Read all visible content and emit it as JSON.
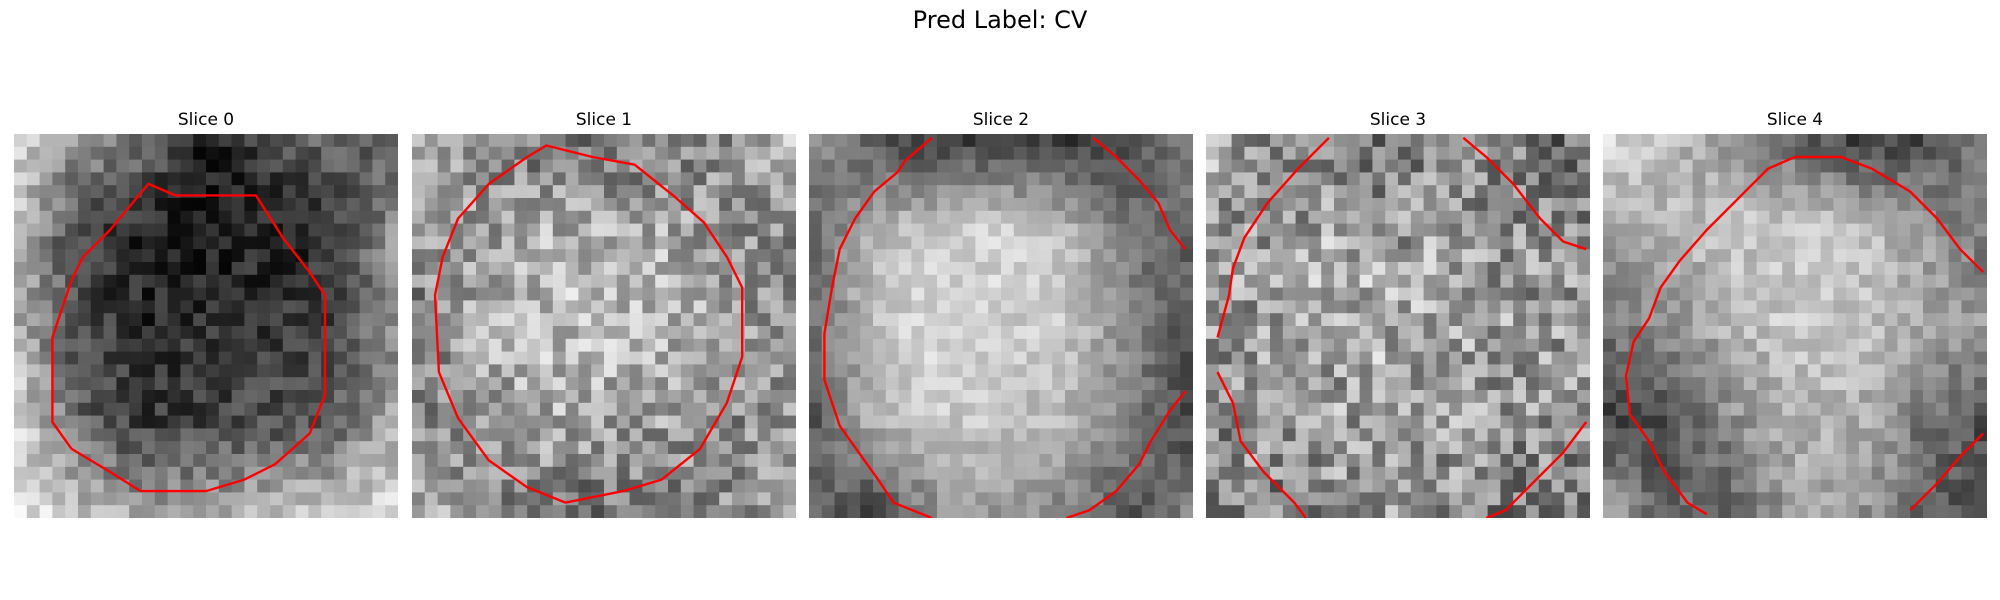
{
  "figure": {
    "title": "Pred Label: CV",
    "contour_color": "#ff0000",
    "colormap": "grayscale",
    "grid_size": 30,
    "slices": [
      {
        "title": "Slice 0",
        "noise": 0.14,
        "field": [
          [
            0.82,
            0.62,
            0.48,
            0.1,
            0.25,
            0.45,
            0.33
          ],
          [
            0.8,
            0.25,
            0.12,
            0.08,
            0.12,
            0.18,
            0.6
          ],
          [
            0.72,
            0.28,
            0.15,
            0.16,
            0.2,
            0.24,
            0.55
          ],
          [
            0.88,
            0.4,
            0.22,
            0.25,
            0.3,
            0.35,
            0.7
          ],
          [
            0.96,
            0.8,
            0.65,
            0.7,
            0.78,
            0.85,
            0.9
          ]
        ],
        "contour": [
          [
            0.35,
            0.13
          ],
          [
            0.42,
            0.16
          ],
          [
            0.63,
            0.16
          ],
          [
            0.7,
            0.27
          ],
          [
            0.77,
            0.36
          ],
          [
            0.81,
            0.42
          ],
          [
            0.81,
            0.68
          ],
          [
            0.77,
            0.78
          ],
          [
            0.68,
            0.86
          ],
          [
            0.6,
            0.9
          ],
          [
            0.5,
            0.93
          ],
          [
            0.33,
            0.93
          ],
          [
            0.25,
            0.88
          ],
          [
            0.15,
            0.82
          ],
          [
            0.1,
            0.75
          ],
          [
            0.1,
            0.53
          ],
          [
            0.15,
            0.38
          ],
          [
            0.18,
            0.32
          ],
          [
            0.25,
            0.25
          ]
        ],
        "closed": true
      },
      {
        "title": "Slice 1",
        "noise": 0.22,
        "field": [
          [
            0.75,
            0.55,
            0.45,
            0.42,
            0.45,
            0.55,
            0.75
          ],
          [
            0.55,
            0.62,
            0.7,
            0.72,
            0.68,
            0.6,
            0.55
          ],
          [
            0.5,
            0.66,
            0.75,
            0.78,
            0.72,
            0.62,
            0.5
          ],
          [
            0.55,
            0.6,
            0.68,
            0.65,
            0.62,
            0.55,
            0.58
          ],
          [
            0.75,
            0.52,
            0.45,
            0.42,
            0.48,
            0.55,
            0.75
          ]
        ],
        "contour": [
          [
            0.3,
            0.06
          ],
          [
            0.35,
            0.03
          ],
          [
            0.47,
            0.06
          ],
          [
            0.58,
            0.08
          ],
          [
            0.68,
            0.16
          ],
          [
            0.76,
            0.23
          ],
          [
            0.82,
            0.32
          ],
          [
            0.86,
            0.4
          ],
          [
            0.86,
            0.58
          ],
          [
            0.82,
            0.7
          ],
          [
            0.75,
            0.82
          ],
          [
            0.65,
            0.9
          ],
          [
            0.55,
            0.93
          ],
          [
            0.4,
            0.96
          ],
          [
            0.3,
            0.92
          ],
          [
            0.2,
            0.85
          ],
          [
            0.12,
            0.74
          ],
          [
            0.07,
            0.62
          ],
          [
            0.06,
            0.42
          ],
          [
            0.08,
            0.32
          ],
          [
            0.12,
            0.22
          ],
          [
            0.2,
            0.13
          ]
        ],
        "closed": true
      },
      {
        "title": "Slice 2",
        "noise": 0.1,
        "field": [
          [
            0.6,
            0.3,
            0.2,
            0.22,
            0.18,
            0.25,
            0.55
          ],
          [
            0.35,
            0.72,
            0.8,
            0.85,
            0.75,
            0.45,
            0.4
          ],
          [
            0.4,
            0.78,
            0.88,
            0.82,
            0.8,
            0.55,
            0.3
          ],
          [
            0.3,
            0.7,
            0.8,
            0.78,
            0.72,
            0.5,
            0.25
          ],
          [
            0.45,
            0.22,
            0.55,
            0.6,
            0.5,
            0.3,
            0.55
          ]
        ],
        "contour": [
          [
            [
              0.32,
              0.01
            ],
            [
              0.25,
              0.07
            ],
            [
              0.23,
              0.1
            ],
            [
              0.17,
              0.15
            ],
            [
              0.12,
              0.22
            ],
            [
              0.08,
              0.3
            ],
            [
              0.06,
              0.4
            ],
            [
              0.04,
              0.52
            ],
            [
              0.04,
              0.64
            ],
            [
              0.08,
              0.76
            ],
            [
              0.13,
              0.83
            ],
            [
              0.18,
              0.9
            ],
            [
              0.22,
              0.96
            ],
            [
              0.32,
              1.0
            ]
          ],
          [
            [
              0.74,
              0.01
            ],
            [
              0.8,
              0.06
            ],
            [
              0.86,
              0.12
            ],
            [
              0.91,
              0.18
            ],
            [
              0.94,
              0.25
            ],
            [
              0.98,
              0.3
            ]
          ],
          [
            [
              0.98,
              0.67
            ],
            [
              0.94,
              0.72
            ],
            [
              0.89,
              0.8
            ],
            [
              0.86,
              0.86
            ],
            [
              0.8,
              0.93
            ],
            [
              0.73,
              0.98
            ],
            [
              0.67,
              1.0
            ]
          ]
        ],
        "closed": false
      },
      {
        "title": "Slice 3",
        "noise": 0.26,
        "field": [
          [
            0.7,
            0.55,
            0.45,
            0.5,
            0.55,
            0.45,
            0.35
          ],
          [
            0.6,
            0.62,
            0.66,
            0.62,
            0.64,
            0.58,
            0.55
          ],
          [
            0.58,
            0.66,
            0.68,
            0.7,
            0.66,
            0.62,
            0.6
          ],
          [
            0.55,
            0.6,
            0.62,
            0.66,
            0.6,
            0.58,
            0.55
          ],
          [
            0.5,
            0.48,
            0.55,
            0.6,
            0.55,
            0.45,
            0.42
          ]
        ],
        "contour": [
          [
            [
              0.32,
              0.01
            ],
            [
              0.24,
              0.09
            ],
            [
              0.16,
              0.18
            ],
            [
              0.1,
              0.27
            ],
            [
              0.07,
              0.35
            ],
            [
              0.06,
              0.42
            ],
            [
              0.03,
              0.53
            ]
          ],
          [
            [
              0.67,
              0.01
            ],
            [
              0.73,
              0.06
            ],
            [
              0.8,
              0.13
            ],
            [
              0.87,
              0.22
            ],
            [
              0.93,
              0.28
            ],
            [
              0.99,
              0.3
            ]
          ],
          [
            [
              0.03,
              0.62
            ],
            [
              0.07,
              0.7
            ],
            [
              0.09,
              0.8
            ],
            [
              0.15,
              0.88
            ],
            [
              0.23,
              0.96
            ],
            [
              0.26,
              1.0
            ]
          ],
          [
            [
              0.99,
              0.75
            ],
            [
              0.93,
              0.83
            ],
            [
              0.85,
              0.91
            ],
            [
              0.78,
              0.98
            ],
            [
              0.73,
              1.0
            ]
          ]
        ],
        "closed": false
      },
      {
        "title": "Slice 4",
        "noise": 0.12,
        "field": [
          [
            0.88,
            0.78,
            0.55,
            0.35,
            0.2,
            0.25,
            0.55
          ],
          [
            0.65,
            0.7,
            0.78,
            0.82,
            0.8,
            0.62,
            0.45
          ],
          [
            0.45,
            0.55,
            0.72,
            0.8,
            0.78,
            0.66,
            0.6
          ],
          [
            0.25,
            0.3,
            0.55,
            0.72,
            0.7,
            0.45,
            0.3
          ],
          [
            0.7,
            0.4,
            0.35,
            0.62,
            0.6,
            0.4,
            0.25
          ]
        ],
        "contour": [
          [
            [
              0.2,
              0.33
            ],
            [
              0.27,
              0.25
            ],
            [
              0.35,
              0.17
            ],
            [
              0.43,
              0.09
            ],
            [
              0.5,
              0.06
            ],
            [
              0.62,
              0.06
            ],
            [
              0.7,
              0.09
            ],
            [
              0.8,
              0.15
            ],
            [
              0.87,
              0.22
            ],
            [
              0.93,
              0.3
            ],
            [
              0.99,
              0.36
            ]
          ],
          [
            [
              0.2,
              0.33
            ],
            [
              0.15,
              0.4
            ],
            [
              0.12,
              0.48
            ],
            [
              0.08,
              0.54
            ],
            [
              0.06,
              0.63
            ],
            [
              0.07,
              0.73
            ],
            [
              0.12,
              0.8
            ],
            [
              0.16,
              0.88
            ],
            [
              0.22,
              0.96
            ],
            [
              0.27,
              0.99
            ]
          ],
          [
            [
              0.8,
              0.98
            ],
            [
              0.87,
              0.91
            ],
            [
              0.93,
              0.84
            ],
            [
              0.99,
              0.78
            ]
          ]
        ],
        "closed": false
      }
    ]
  }
}
